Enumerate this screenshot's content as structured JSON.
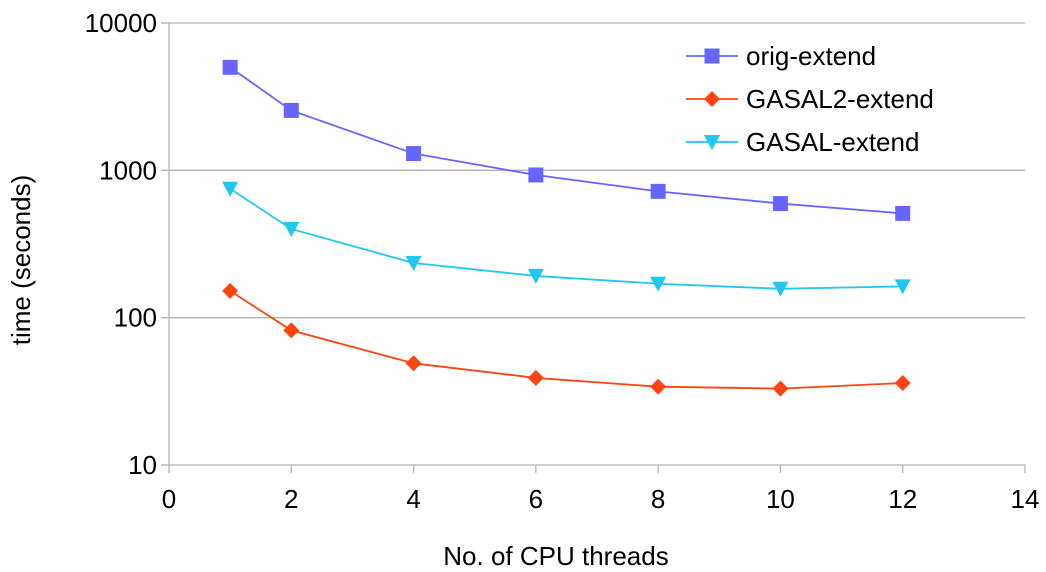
{
  "chart_data": {
    "type": "line",
    "title": "",
    "xlabel": "No. of CPU threads",
    "ylabel": "time (seconds)",
    "xlim": [
      0,
      14
    ],
    "ylim": [
      10,
      10000
    ],
    "yscale": "log",
    "xticks": [
      0,
      2,
      4,
      6,
      8,
      10,
      12,
      14
    ],
    "yticks": [
      10,
      100,
      1000,
      10000
    ],
    "x": [
      1,
      2,
      4,
      6,
      8,
      10,
      12
    ],
    "grid": {
      "horizontal": true,
      "vertical": false
    },
    "legend_position": "top-right",
    "series": [
      {
        "name": "orig-extend",
        "color": "#6666ff",
        "marker": "square",
        "values": [
          5000,
          2550,
          1300,
          930,
          720,
          595,
          510
        ]
      },
      {
        "name": "GASAL2-extend",
        "color": "#ff4411",
        "marker": "diamond",
        "values": [
          152,
          82,
          49,
          39,
          34,
          33,
          36
        ]
      },
      {
        "name": "GASAL-extend",
        "color": "#1ec8f0",
        "marker": "triangle-down",
        "values": [
          750,
          400,
          235,
          192,
          170,
          157,
          163
        ]
      }
    ]
  }
}
